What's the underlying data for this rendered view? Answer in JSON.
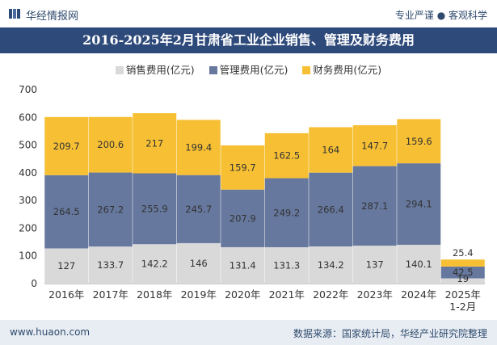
{
  "header": {
    "brand": "华经情报网",
    "slogan": "专业严谨 ● 客观科学"
  },
  "chart_data": {
    "type": "bar",
    "stacked": true,
    "title": "2016-2025年2月甘肃省工业企业销售、管理及财务费用",
    "categories": [
      "2016年",
      "2017年",
      "2018年",
      "2019年",
      "2020年",
      "2021年",
      "2022年",
      "2023年",
      "2024年",
      "2025年\n1-2月"
    ],
    "series": [
      {
        "name": "销售费用(亿元)",
        "color": "#d9d9d9",
        "values": [
          127,
          133.7,
          142.2,
          146,
          131.4,
          131.3,
          134.2,
          137,
          140.1,
          19
        ]
      },
      {
        "name": "管理费用(亿元)",
        "color": "#66789e",
        "values": [
          264.5,
          267.2,
          255.9,
          245.7,
          207.9,
          249.2,
          266.4,
          287.1,
          294.1,
          42.5
        ]
      },
      {
        "name": "财务费用(亿元)",
        "color": "#f7c034",
        "values": [
          209.7,
          200.6,
          217,
          199.4,
          159.7,
          162.5,
          164,
          147.7,
          159.6,
          25.4
        ]
      }
    ],
    "yticks": [
      0,
      100,
      200,
      300,
      400,
      500,
      600,
      700
    ],
    "ylim": [
      0,
      700
    ],
    "xlabel": "",
    "ylabel": "",
    "legend_position": "top"
  },
  "footer": {
    "website": "www.huaon.com",
    "source": "数据来源：国家统计局，华经产业研究院整理"
  }
}
